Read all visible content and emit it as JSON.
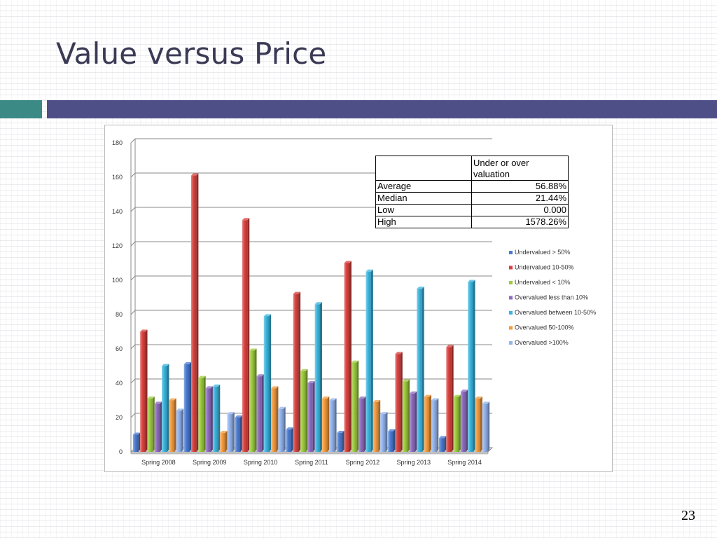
{
  "slide": {
    "title": "Value versus Price",
    "page_number": "23"
  },
  "colors": {
    "accent_teal": "#3c8a86",
    "accent_purple": "#4f4f88"
  },
  "stats_table": {
    "header": "Under or over valuation",
    "rows": [
      {
        "label": "Average",
        "value": "56.88%"
      },
      {
        "label": "Median",
        "value": "21.44%"
      },
      {
        "label": "Low",
        "value": "0.000"
      },
      {
        "label": "High",
        "value": "1578.26%"
      }
    ]
  },
  "chart_data": {
    "type": "bar",
    "style": "3d-clustered-column",
    "categories": [
      "Spring 2008",
      "Spring 2009",
      "Spring 2010",
      "Spring 2011",
      "Spring 2012",
      "Spring 2013",
      "Spring 2014"
    ],
    "series": [
      {
        "name": "Undervalued > 50%",
        "color": "#4a7bd1",
        "values": [
          10,
          51,
          20,
          13,
          11,
          12,
          8
        ]
      },
      {
        "name": "Undervalued 10-50%",
        "color": "#d9423e",
        "values": [
          70,
          161,
          135,
          92,
          110,
          57,
          61
        ]
      },
      {
        "name": "Undervalued < 10%",
        "color": "#9ccc3c",
        "values": [
          31,
          43,
          59,
          47,
          52,
          41,
          32
        ]
      },
      {
        "name": "Overvalued less than 10%",
        "color": "#8e6bbf",
        "values": [
          28,
          37,
          44,
          40,
          31,
          34,
          35
        ]
      },
      {
        "name": "Overvalued between 10-50%",
        "color": "#3ab5df",
        "values": [
          50,
          38,
          79,
          86,
          105,
          95,
          99
        ]
      },
      {
        "name": "Overvalued 50-100%",
        "color": "#f59b3c",
        "values": [
          30,
          11,
          37,
          31,
          29,
          32,
          31
        ]
      },
      {
        "name": "Overvalued >100%",
        "color": "#92b4ef",
        "values": [
          24,
          22,
          25,
          30,
          22,
          30,
          28
        ]
      }
    ],
    "yticks": [
      0,
      20,
      40,
      60,
      80,
      100,
      120,
      140,
      160,
      180
    ],
    "ylim": [
      0,
      180
    ],
    "title": "",
    "xlabel": "",
    "ylabel": "",
    "grid": true,
    "legend_position": "right"
  }
}
